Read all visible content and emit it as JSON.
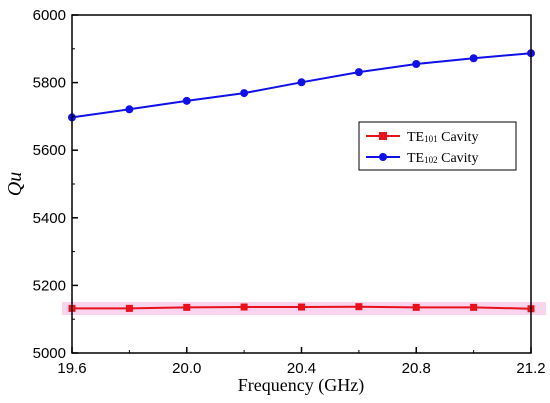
{
  "chart_data": {
    "type": "line",
    "title": "",
    "xlabel": "Frequency (GHz)",
    "ylabel": "Qu",
    "xlim": [
      19.6,
      21.2
    ],
    "ylim": [
      5000,
      6000
    ],
    "xticks": [
      "19.6",
      "20.0",
      "20.4",
      "20.8",
      "21.2"
    ],
    "yticks": [
      "5000",
      "5200",
      "5400",
      "5600",
      "5800",
      "6000"
    ],
    "grid": false,
    "legend_position": "right",
    "series": [
      {
        "name_prefix": "TE",
        "name_sub": "101",
        "name_suffix": " Cavity",
        "color": "#e8101a",
        "marker": "square",
        "x": [
          19.6,
          19.8,
          20.0,
          20.2,
          20.4,
          20.6,
          20.8,
          21.0,
          21.2
        ],
        "y": [
          5132,
          5132,
          5135,
          5136,
          5136,
          5137,
          5135,
          5135,
          5131
        ]
      },
      {
        "name_prefix": "TE",
        "name_sub": "102",
        "name_suffix": " Cavity",
        "color": "#1010e8",
        "marker": "circle",
        "x": [
          19.6,
          19.8,
          20.0,
          20.2,
          20.4,
          20.6,
          20.8,
          21.0,
          21.2
        ],
        "y": [
          5697,
          5721,
          5746,
          5769,
          5801,
          5831,
          5855,
          5872,
          5887
        ]
      }
    ]
  }
}
